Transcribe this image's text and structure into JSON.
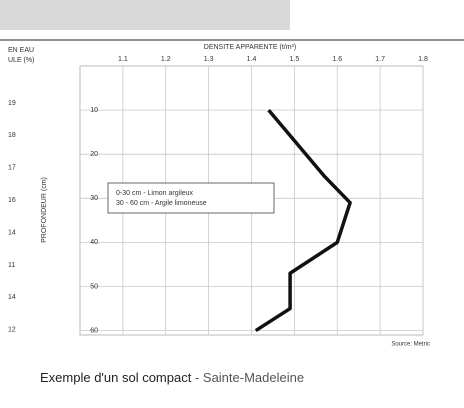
{
  "chart_data": {
    "type": "line",
    "title": "DENSITE APPARENTE (t/m³)",
    "y_label": "PROFONDEUR (cm)",
    "left_header": [
      "EN EAU",
      "ULE (%)"
    ],
    "left_labels": [
      "19",
      "18",
      "17",
      "16",
      "14",
      "11",
      "14",
      "12"
    ],
    "legend_box": [
      "0-30 cm - Limon argileux",
      "30 - 60 cm - Argile limoneuse"
    ],
    "source": "Source: Metric",
    "caption": "Exemple d'un sol compact",
    "caption_place": " - Sainte-Madeleine",
    "x": [
      1.44,
      1.57,
      1.63,
      1.6,
      1.49,
      1.49,
      1.41
    ],
    "series": [
      {
        "color": "#111111",
        "values": [
          10,
          25,
          31,
          40,
          47,
          55,
          60
        ]
      }
    ],
    "xlim": [
      1.0,
      1.8
    ],
    "xticks": [
      1.1,
      1.2,
      1.3,
      1.4,
      1.5,
      1.6,
      1.7,
      1.8
    ],
    "ylim": [
      0,
      61
    ],
    "yticks": [
      10,
      20,
      30,
      40,
      50,
      60
    ],
    "y_inverted": true,
    "grid": true
  }
}
